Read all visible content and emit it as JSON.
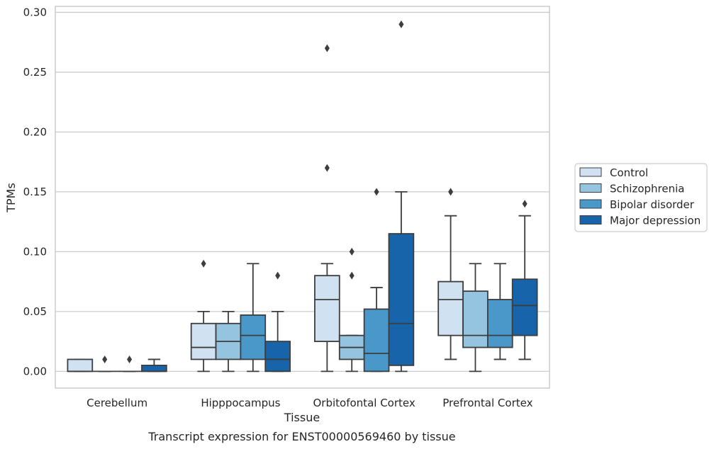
{
  "chart_data": {
    "type": "box",
    "title": "",
    "caption": "Transcript expression for ENST00000569460 by tissue",
    "xlabel": "Tissue",
    "ylabel": "TPMs",
    "ylim": [
      -0.014,
      0.305
    ],
    "yticks": [
      0.0,
      0.05,
      0.1,
      0.15,
      0.2,
      0.25,
      0.3
    ],
    "ytick_labels": [
      "0.00",
      "0.05",
      "0.10",
      "0.15",
      "0.20",
      "0.25",
      "0.30"
    ],
    "grid": "horizontal",
    "legend_position": "right",
    "categories": [
      "Cerebellum",
      "Hipppocampus",
      "Orbitofontal Cortex",
      "Prefrontal Cortex"
    ],
    "series": [
      {
        "name": "Control",
        "color": "#d0e1f2",
        "boxes": [
          {
            "whislo": 0.0,
            "q1": 0.0,
            "med": 0.0,
            "q3": 0.01,
            "whishi": 0.01,
            "fliers": []
          },
          {
            "whislo": 0.0,
            "q1": 0.01,
            "med": 0.02,
            "q3": 0.04,
            "whishi": 0.05,
            "fliers": [
              0.09
            ]
          },
          {
            "whislo": 0.0,
            "q1": 0.025,
            "med": 0.06,
            "q3": 0.08,
            "whishi": 0.09,
            "fliers": [
              0.17,
              0.27
            ]
          },
          {
            "whislo": 0.01,
            "q1": 0.03,
            "med": 0.06,
            "q3": 0.075,
            "whishi": 0.13,
            "fliers": [
              0.15
            ]
          }
        ]
      },
      {
        "name": "Schizophrenia",
        "color": "#94c4df",
        "boxes": [
          {
            "whislo": 0.0,
            "q1": 0.0,
            "med": 0.0,
            "q3": 0.0,
            "whishi": 0.0,
            "fliers": [
              0.01
            ]
          },
          {
            "whislo": 0.0,
            "q1": 0.01,
            "med": 0.025,
            "q3": 0.04,
            "whishi": 0.05,
            "fliers": []
          },
          {
            "whislo": 0.0,
            "q1": 0.01,
            "med": 0.02,
            "q3": 0.03,
            "whishi": 0.03,
            "fliers": [
              0.08,
              0.1
            ]
          },
          {
            "whislo": 0.0,
            "q1": 0.02,
            "med": 0.03,
            "q3": 0.067,
            "whishi": 0.09,
            "fliers": []
          }
        ]
      },
      {
        "name": "Bipolar disorder",
        "color": "#4a98c9",
        "boxes": [
          {
            "whislo": 0.0,
            "q1": 0.0,
            "med": 0.0,
            "q3": 0.0,
            "whishi": 0.0,
            "fliers": [
              0.01
            ]
          },
          {
            "whislo": 0.0,
            "q1": 0.01,
            "med": 0.03,
            "q3": 0.047,
            "whishi": 0.09,
            "fliers": []
          },
          {
            "whislo": 0.0,
            "q1": 0.0,
            "med": 0.015,
            "q3": 0.052,
            "whishi": 0.07,
            "fliers": [
              0.15
            ]
          },
          {
            "whislo": 0.01,
            "q1": 0.02,
            "med": 0.03,
            "q3": 0.06,
            "whishi": 0.09,
            "fliers": []
          }
        ]
      },
      {
        "name": "Major depression",
        "color": "#1764ab",
        "boxes": [
          {
            "whislo": 0.0,
            "q1": 0.0,
            "med": 0.0,
            "q3": 0.005,
            "whishi": 0.01,
            "fliers": []
          },
          {
            "whislo": 0.0,
            "q1": 0.0,
            "med": 0.01,
            "q3": 0.025,
            "whishi": 0.05,
            "fliers": [
              0.08
            ]
          },
          {
            "whislo": 0.0,
            "q1": 0.005,
            "med": 0.04,
            "q3": 0.115,
            "whishi": 0.15,
            "fliers": [
              0.29
            ]
          },
          {
            "whislo": 0.01,
            "q1": 0.03,
            "med": 0.055,
            "q3": 0.077,
            "whishi": 0.13,
            "fliers": [
              0.14
            ]
          }
        ]
      }
    ]
  }
}
